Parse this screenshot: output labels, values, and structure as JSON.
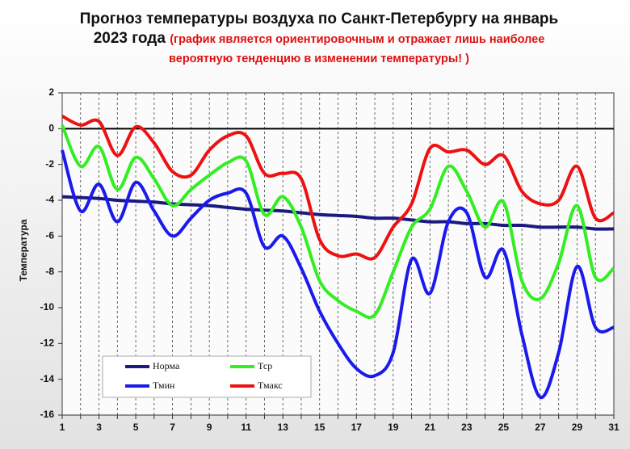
{
  "chart_data": {
    "type": "line",
    "title": "Прогноз температуры воздуха по Санкт-Петербургу на январь 2023 года",
    "subtitle": "(график является ориентировочным и отражает лишь наиболее вероятную тенденцию в изменении температуры! )",
    "y_label": "Температура",
    "x": [
      1,
      2,
      3,
      4,
      5,
      6,
      7,
      8,
      9,
      10,
      11,
      12,
      13,
      14,
      15,
      16,
      17,
      18,
      19,
      20,
      21,
      22,
      23,
      24,
      25,
      26,
      27,
      28,
      29,
      30,
      31
    ],
    "xlim": [
      1,
      31
    ],
    "xticks": [
      1,
      3,
      5,
      7,
      9,
      11,
      13,
      15,
      17,
      19,
      21,
      23,
      25,
      27,
      29,
      31
    ],
    "ylim": [
      -16,
      2
    ],
    "yticks": [
      2,
      0,
      -2,
      -4,
      -6,
      -8,
      -10,
      -12,
      -14,
      -16
    ],
    "grid": true,
    "series": [
      {
        "name": "Норма",
        "color": "#1a1a80",
        "values": [
          -3.8,
          -3.85,
          -3.9,
          -4.0,
          -4.05,
          -4.1,
          -4.2,
          -4.25,
          -4.3,
          -4.4,
          -4.5,
          -4.55,
          -4.6,
          -4.7,
          -4.8,
          -4.85,
          -4.9,
          -5.0,
          -5.0,
          -5.1,
          -5.2,
          -5.2,
          -5.3,
          -5.3,
          -5.4,
          -5.4,
          -5.5,
          -5.5,
          -5.5,
          -5.6,
          -5.6
        ]
      },
      {
        "name": "Тср",
        "color": "#33ee22",
        "values": [
          0.2,
          -2.1,
          -1.0,
          -3.4,
          -1.6,
          -2.8,
          -4.3,
          -3.4,
          -2.6,
          -1.9,
          -1.8,
          -4.8,
          -3.8,
          -5.5,
          -8.5,
          -9.6,
          -10.2,
          -10.4,
          -8.0,
          -5.5,
          -4.5,
          -2.1,
          -3.5,
          -5.5,
          -4.1,
          -8.5,
          -9.5,
          -7.5,
          -4.3,
          -8.3,
          -7.8
        ]
      },
      {
        "name": "Тмин",
        "color": "#1a1aee",
        "values": [
          -1.2,
          -4.6,
          -3.1,
          -5.2,
          -3.0,
          -4.6,
          -6.0,
          -5.0,
          -4.0,
          -3.6,
          -3.6,
          -6.6,
          -6.0,
          -7.8,
          -10.2,
          -12.0,
          -13.4,
          -13.8,
          -12.5,
          -7.3,
          -9.2,
          -5.2,
          -4.7,
          -8.3,
          -6.8,
          -11.5,
          -15.0,
          -12.5,
          -7.7,
          -11.1,
          -11.1
        ]
      },
      {
        "name": "Тмакс",
        "color": "#ee1111",
        "values": [
          0.7,
          0.2,
          0.4,
          -1.5,
          0.1,
          -0.8,
          -2.4,
          -2.6,
          -1.2,
          -0.4,
          -0.4,
          -2.5,
          -2.5,
          -2.8,
          -6.2,
          -7.1,
          -7.0,
          -7.2,
          -5.5,
          -4.2,
          -1.1,
          -1.3,
          -1.2,
          -2.0,
          -1.5,
          -3.5,
          -4.2,
          -4.0,
          -2.1,
          -5.0,
          -4.7
        ]
      }
    ]
  }
}
